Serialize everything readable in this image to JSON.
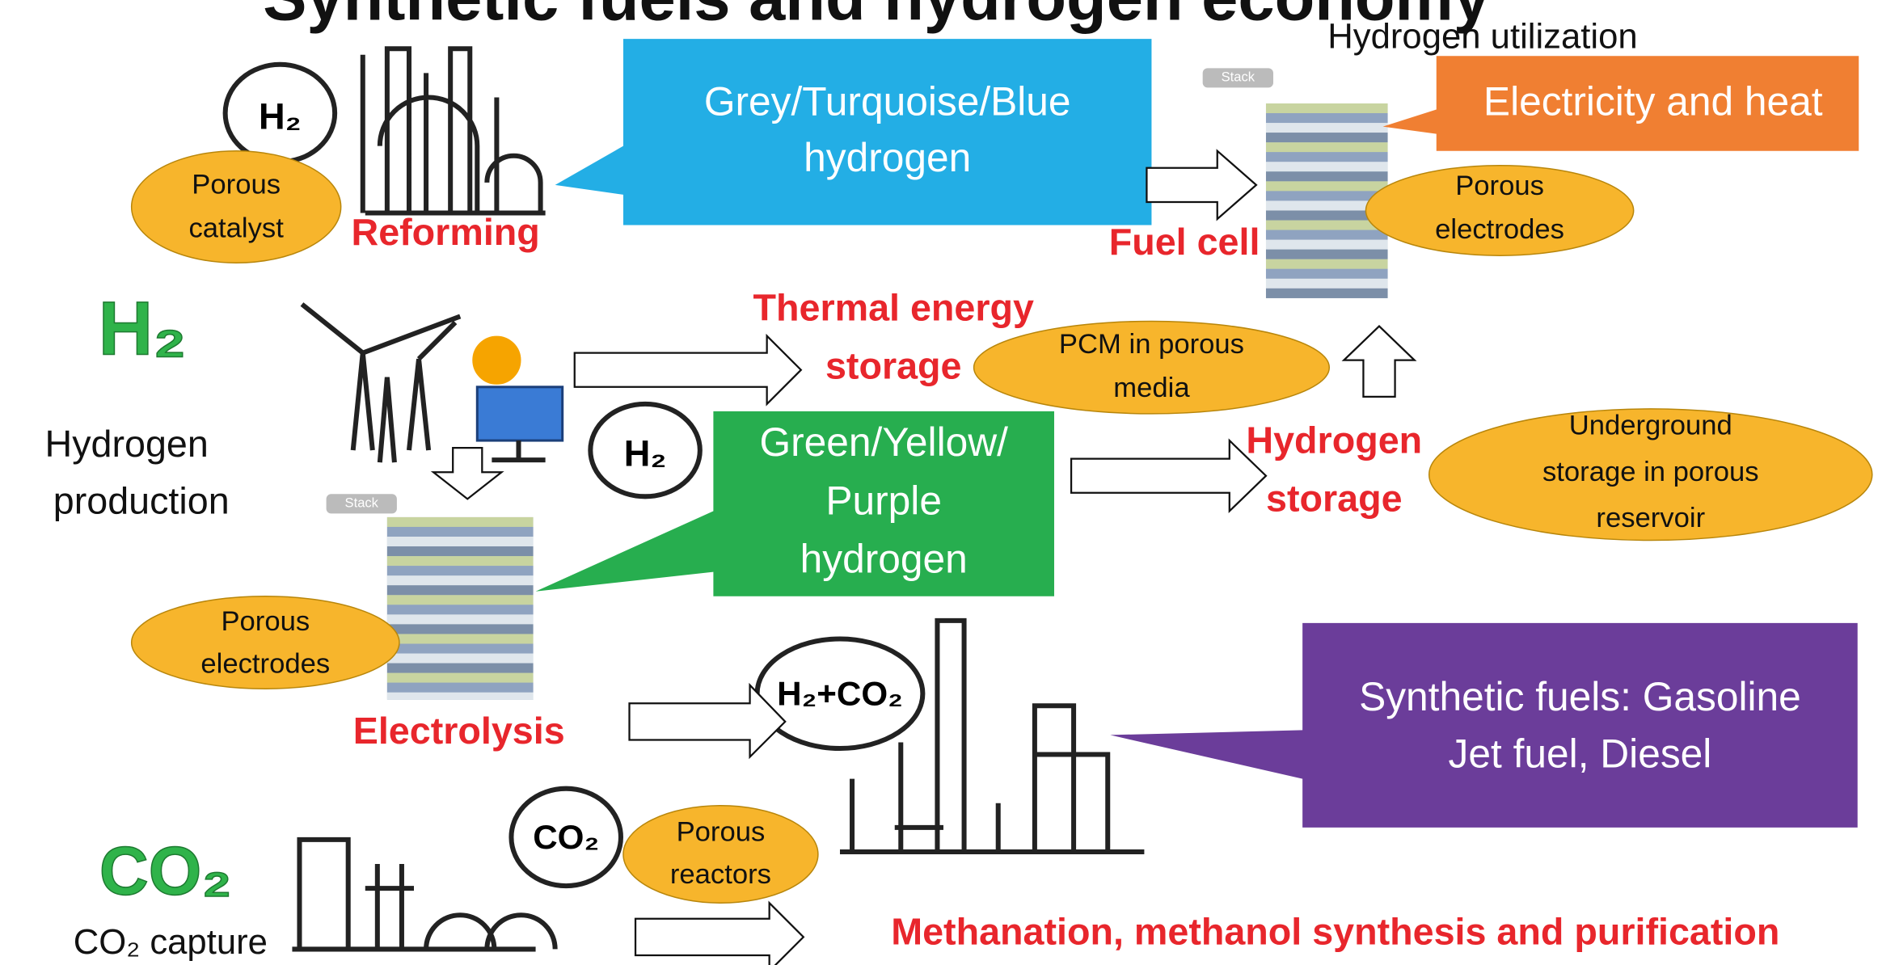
{
  "title": "Synthetic fuels and hydrogen economy",
  "hydrogen_utilization": "Hydrogen utilization",
  "callouts": {
    "grey": [
      "Grey/Turquoise/Blue",
      "hydrogen"
    ],
    "green": [
      "Green/Yellow/",
      "Purple",
      "hydrogen"
    ],
    "synthetic": [
      "Synthetic fuels: Gasoline",
      "Jet fuel, Diesel"
    ],
    "electricity": "Electricity and heat"
  },
  "processes": {
    "reforming": "Reforming",
    "fuel_cell": "Fuel cell",
    "thermal": [
      "Thermal energy",
      "storage"
    ],
    "hydrogen_storage": [
      "Hydrogen",
      "storage"
    ],
    "electrolysis": "Electrolysis",
    "methanation": "Methanation, methanol synthesis and purification"
  },
  "porous": {
    "catalyst": [
      "Porous",
      "catalyst"
    ],
    "electrodes_top": [
      "Porous",
      "electrodes"
    ],
    "pcm": [
      "PCM in porous",
      "media"
    ],
    "underground": [
      "Underground",
      "storage in porous",
      "reservoir"
    ],
    "electrodes_left": [
      "Porous",
      "electrodes"
    ],
    "reactors": [
      "Porous",
      "reactors"
    ]
  },
  "left": {
    "h2": "H₂",
    "production": [
      "Hydrogen",
      "production"
    ],
    "co2": "CO₂",
    "capture": "CO₂ capture"
  },
  "icons": {
    "cloud_h2_top": "H₂",
    "cloud_h2_mid": "H₂",
    "cloud_mix": "H₂+CO₂",
    "cloud_co2": "CO₂",
    "stack_top": "Stack",
    "stack_left": "Stack"
  }
}
